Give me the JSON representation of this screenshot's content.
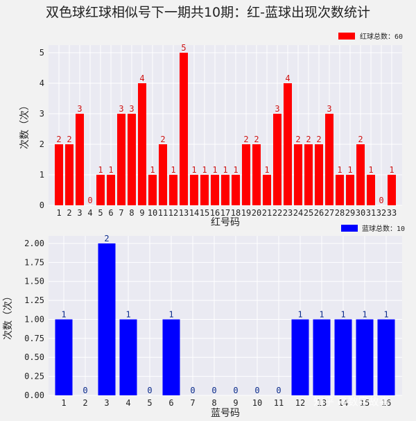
{
  "title": "双色球红球相似号下一期共10期：红-蓝球出现次数统计",
  "watermark": "知乎 @数字故事",
  "colors": {
    "background": "#f2f2f2",
    "plot_bg": "#eaeaf2",
    "grid": "#ffffff",
    "red": "#ff0000",
    "blue": "#0000ff",
    "red_label": "#cc1111",
    "blue_label": "#0a2a8a"
  },
  "chart_data": [
    {
      "type": "bar",
      "categories": [
        "1",
        "2",
        "3",
        "4",
        "5",
        "6",
        "7",
        "8",
        "9",
        "10",
        "11",
        "12",
        "13",
        "14",
        "15",
        "16",
        "17",
        "18",
        "19",
        "20",
        "21",
        "22",
        "23",
        "24",
        "25",
        "26",
        "27",
        "28",
        "29",
        "30",
        "31",
        "32",
        "33"
      ],
      "series": [
        {
          "name": "红球总数：60",
          "values": [
            2,
            2,
            3,
            0,
            1,
            1,
            3,
            3,
            4,
            1,
            2,
            1,
            5,
            1,
            1,
            1,
            1,
            1,
            2,
            2,
            1,
            3,
            4,
            2,
            2,
            2,
            3,
            1,
            1,
            2,
            1,
            0,
            1
          ]
        }
      ],
      "xlabel": "红号码",
      "ylabel": "次数（次）",
      "ylim": [
        0,
        5.25
      ],
      "yticks": [
        "0",
        "1",
        "2",
        "3",
        "4",
        "5"
      ],
      "legend": "top-right",
      "grid": true,
      "color": "#ff0000"
    },
    {
      "type": "bar",
      "categories": [
        "1",
        "2",
        "3",
        "4",
        "5",
        "6",
        "7",
        "8",
        "9",
        "10",
        "11",
        "12",
        "13",
        "14",
        "15",
        "16"
      ],
      "series": [
        {
          "name": "蓝球总数：10",
          "values": [
            1,
            0,
            2,
            1,
            0,
            1,
            0,
            0,
            0,
            0,
            0,
            1,
            1,
            1,
            1,
            1
          ]
        }
      ],
      "xlabel": "蓝号码",
      "ylabel": "次数（次）",
      "ylim": [
        0,
        2.1
      ],
      "yticks": [
        "0.00",
        "0.25",
        "0.50",
        "0.75",
        "1.00",
        "1.25",
        "1.50",
        "1.75",
        "2.00"
      ],
      "legend": "top-right",
      "grid": true,
      "color": "#0000ff"
    }
  ]
}
